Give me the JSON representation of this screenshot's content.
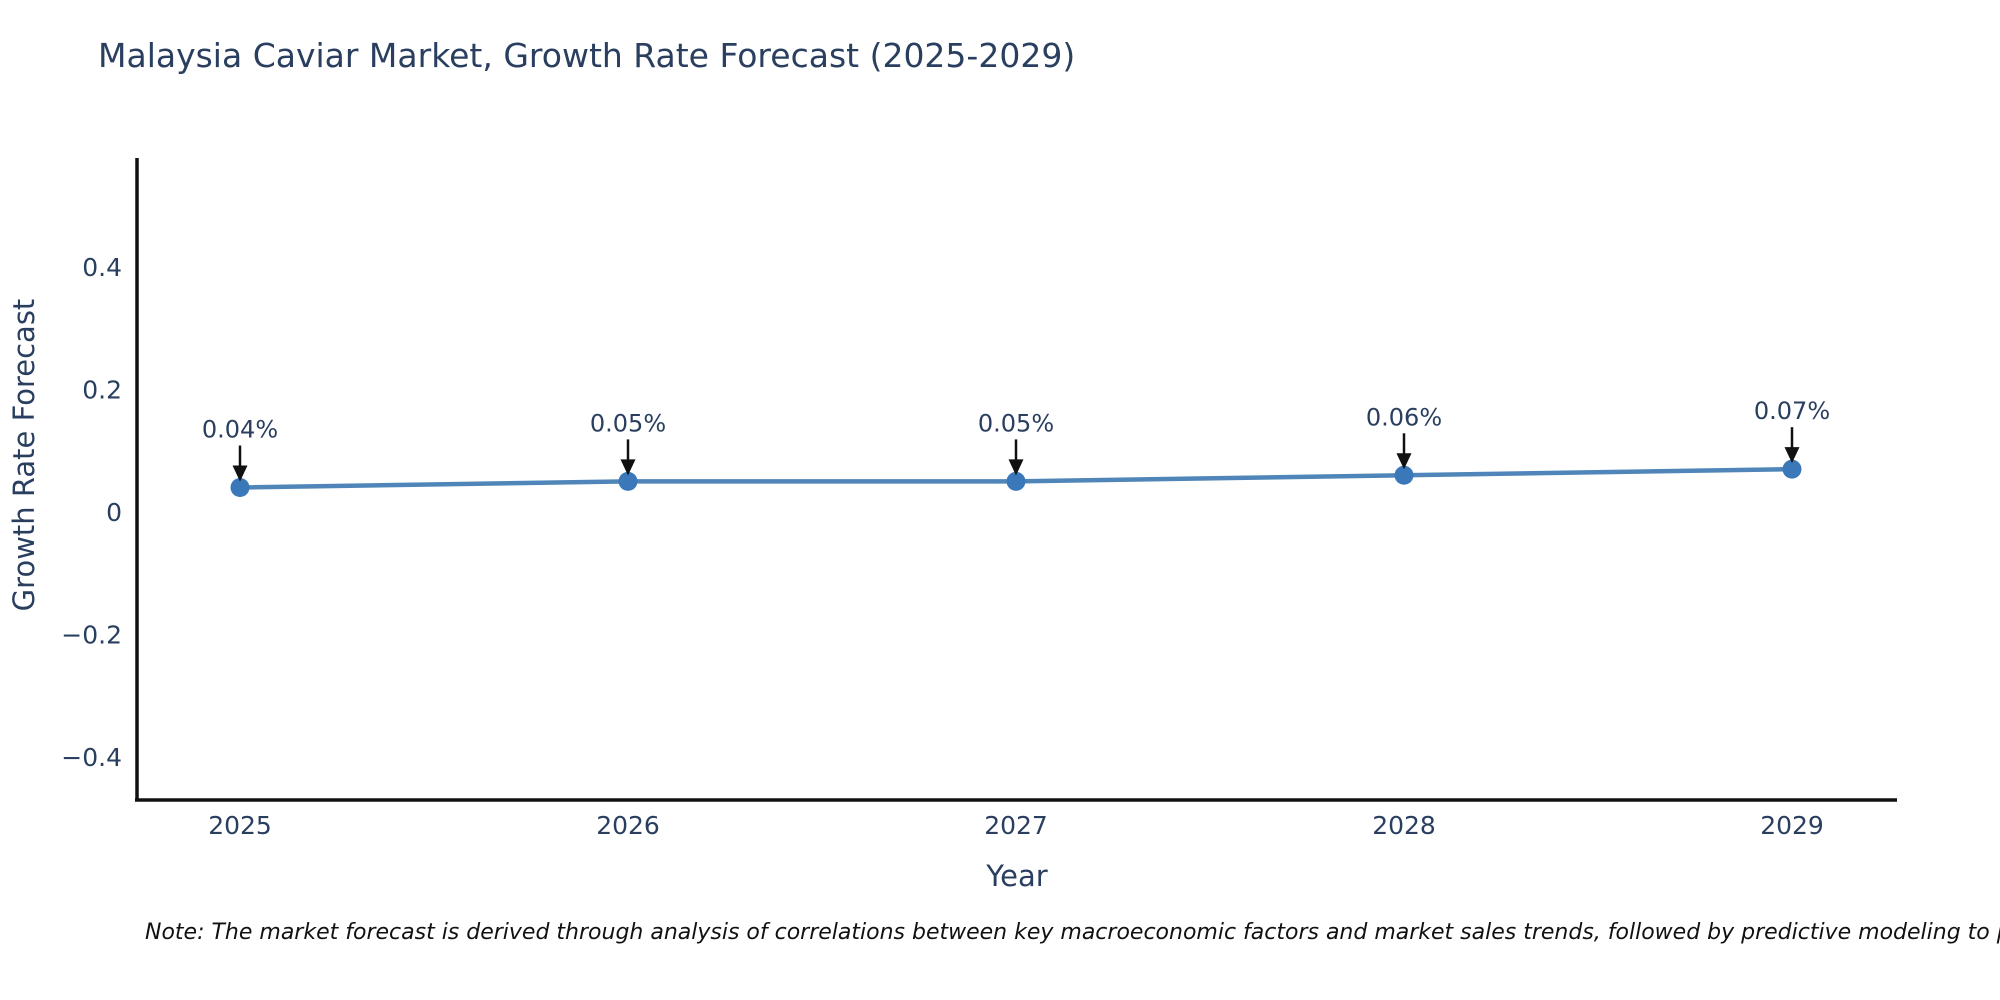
{
  "header": {
    "title": "Malaysia Caviar Market, Growth Rate Forecast (2025-2029)"
  },
  "chart_data": {
    "type": "line",
    "title": "Malaysia Caviar Market, Growth Rate Forecast (2025-2029)",
    "xlabel": "Year",
    "ylabel": "Growth Rate Forecast",
    "x": [
      2025,
      2026,
      2027,
      2028,
      2029
    ],
    "x_tick_labels": [
      "2025",
      "2026",
      "2027",
      "2028",
      "2029"
    ],
    "series": [
      {
        "name": "Growth Rate Forecast",
        "values": [
          0.04,
          0.05,
          0.05,
          0.06,
          0.07
        ],
        "point_labels": [
          "0.04%",
          "0.05%",
          "0.05%",
          "0.06%",
          "0.07%"
        ]
      }
    ],
    "y_ticks": [
      0.4,
      0.2,
      0,
      -0.2,
      -0.4
    ],
    "y_tick_labels": [
      "0.4",
      "0.2",
      "0",
      "−0.2",
      "−0.4"
    ],
    "ylim": [
      -0.48,
      0.57
    ],
    "grid": false,
    "legend": "none",
    "colors": {
      "line": "#4f85b8",
      "marker": "#3a78ba",
      "axis": "#111111",
      "text": "#2a3f5f",
      "annotation_arrow": "#111111"
    }
  },
  "footer": {
    "note": "Note: The market forecast is derived through analysis of correlations between key macroeconomic factors and market sales trends, followed by predictive modeling to project future sa"
  }
}
